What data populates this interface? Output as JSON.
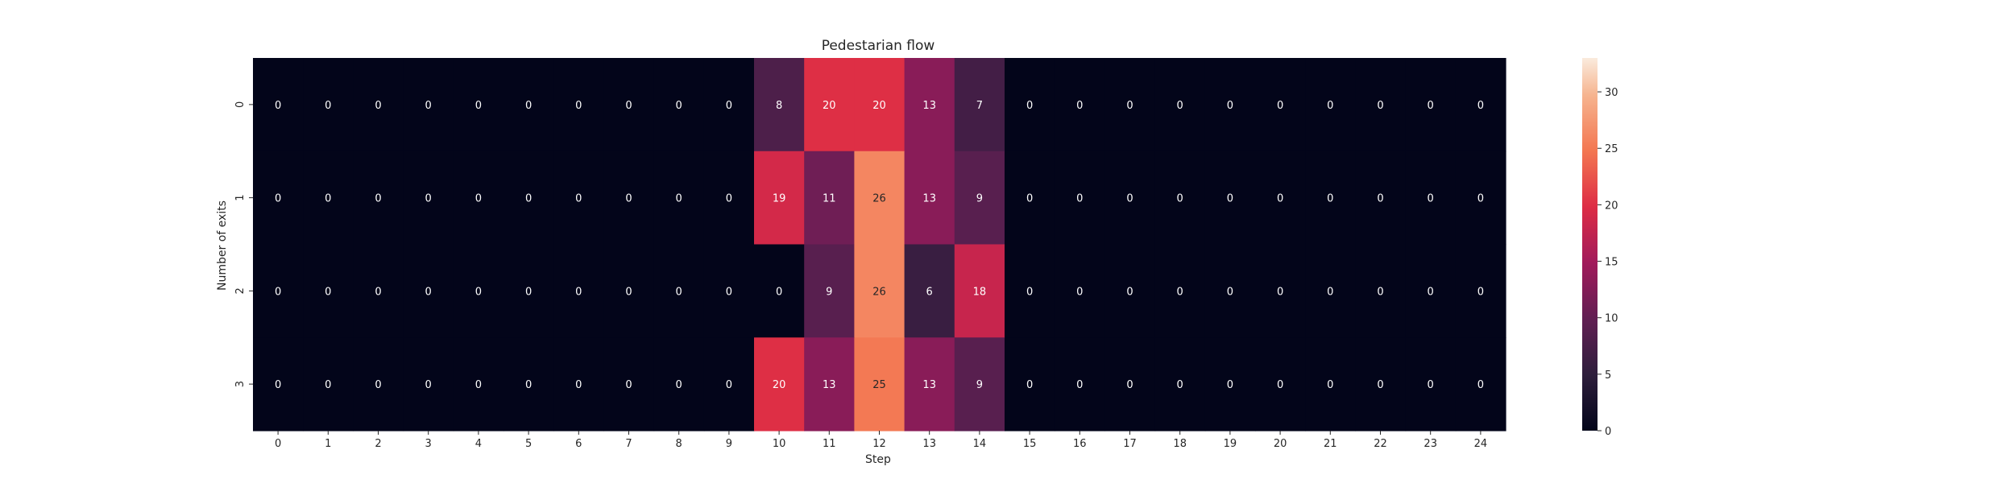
{
  "chart_data": {
    "type": "heatmap",
    "title": "Pedestarian flow",
    "xlabel": "Step",
    "ylabel": "Number of exits",
    "x_ticks": [
      "0",
      "1",
      "2",
      "3",
      "4",
      "5",
      "6",
      "7",
      "8",
      "9",
      "10",
      "11",
      "12",
      "13",
      "14",
      "15",
      "16",
      "17",
      "18",
      "19",
      "20",
      "21",
      "22",
      "23",
      "24"
    ],
    "y_ticks": [
      "0",
      "1",
      "2",
      "3"
    ],
    "values": [
      [
        0,
        0,
        0,
        0,
        0,
        0,
        0,
        0,
        0,
        0,
        8,
        20,
        20,
        13,
        7,
        0,
        0,
        0,
        0,
        0,
        0,
        0,
        0,
        0,
        0
      ],
      [
        0,
        0,
        0,
        0,
        0,
        0,
        0,
        0,
        0,
        0,
        19,
        11,
        26,
        13,
        9,
        0,
        0,
        0,
        0,
        0,
        0,
        0,
        0,
        0,
        0
      ],
      [
        0,
        0,
        0,
        0,
        0,
        0,
        0,
        0,
        0,
        0,
        0,
        9,
        26,
        6,
        18,
        0,
        0,
        0,
        0,
        0,
        0,
        0,
        0,
        0,
        0
      ],
      [
        0,
        0,
        0,
        0,
        0,
        0,
        0,
        0,
        0,
        0,
        20,
        13,
        25,
        13,
        9,
        0,
        0,
        0,
        0,
        0,
        0,
        0,
        0,
        0,
        0
      ]
    ],
    "colorbar": {
      "min": 0,
      "max": 33,
      "ticks": [
        "0",
        "5",
        "10",
        "15",
        "20",
        "25",
        "30"
      ],
      "colormap": "rocket"
    },
    "grid": false,
    "legend": "colorbar-right"
  }
}
